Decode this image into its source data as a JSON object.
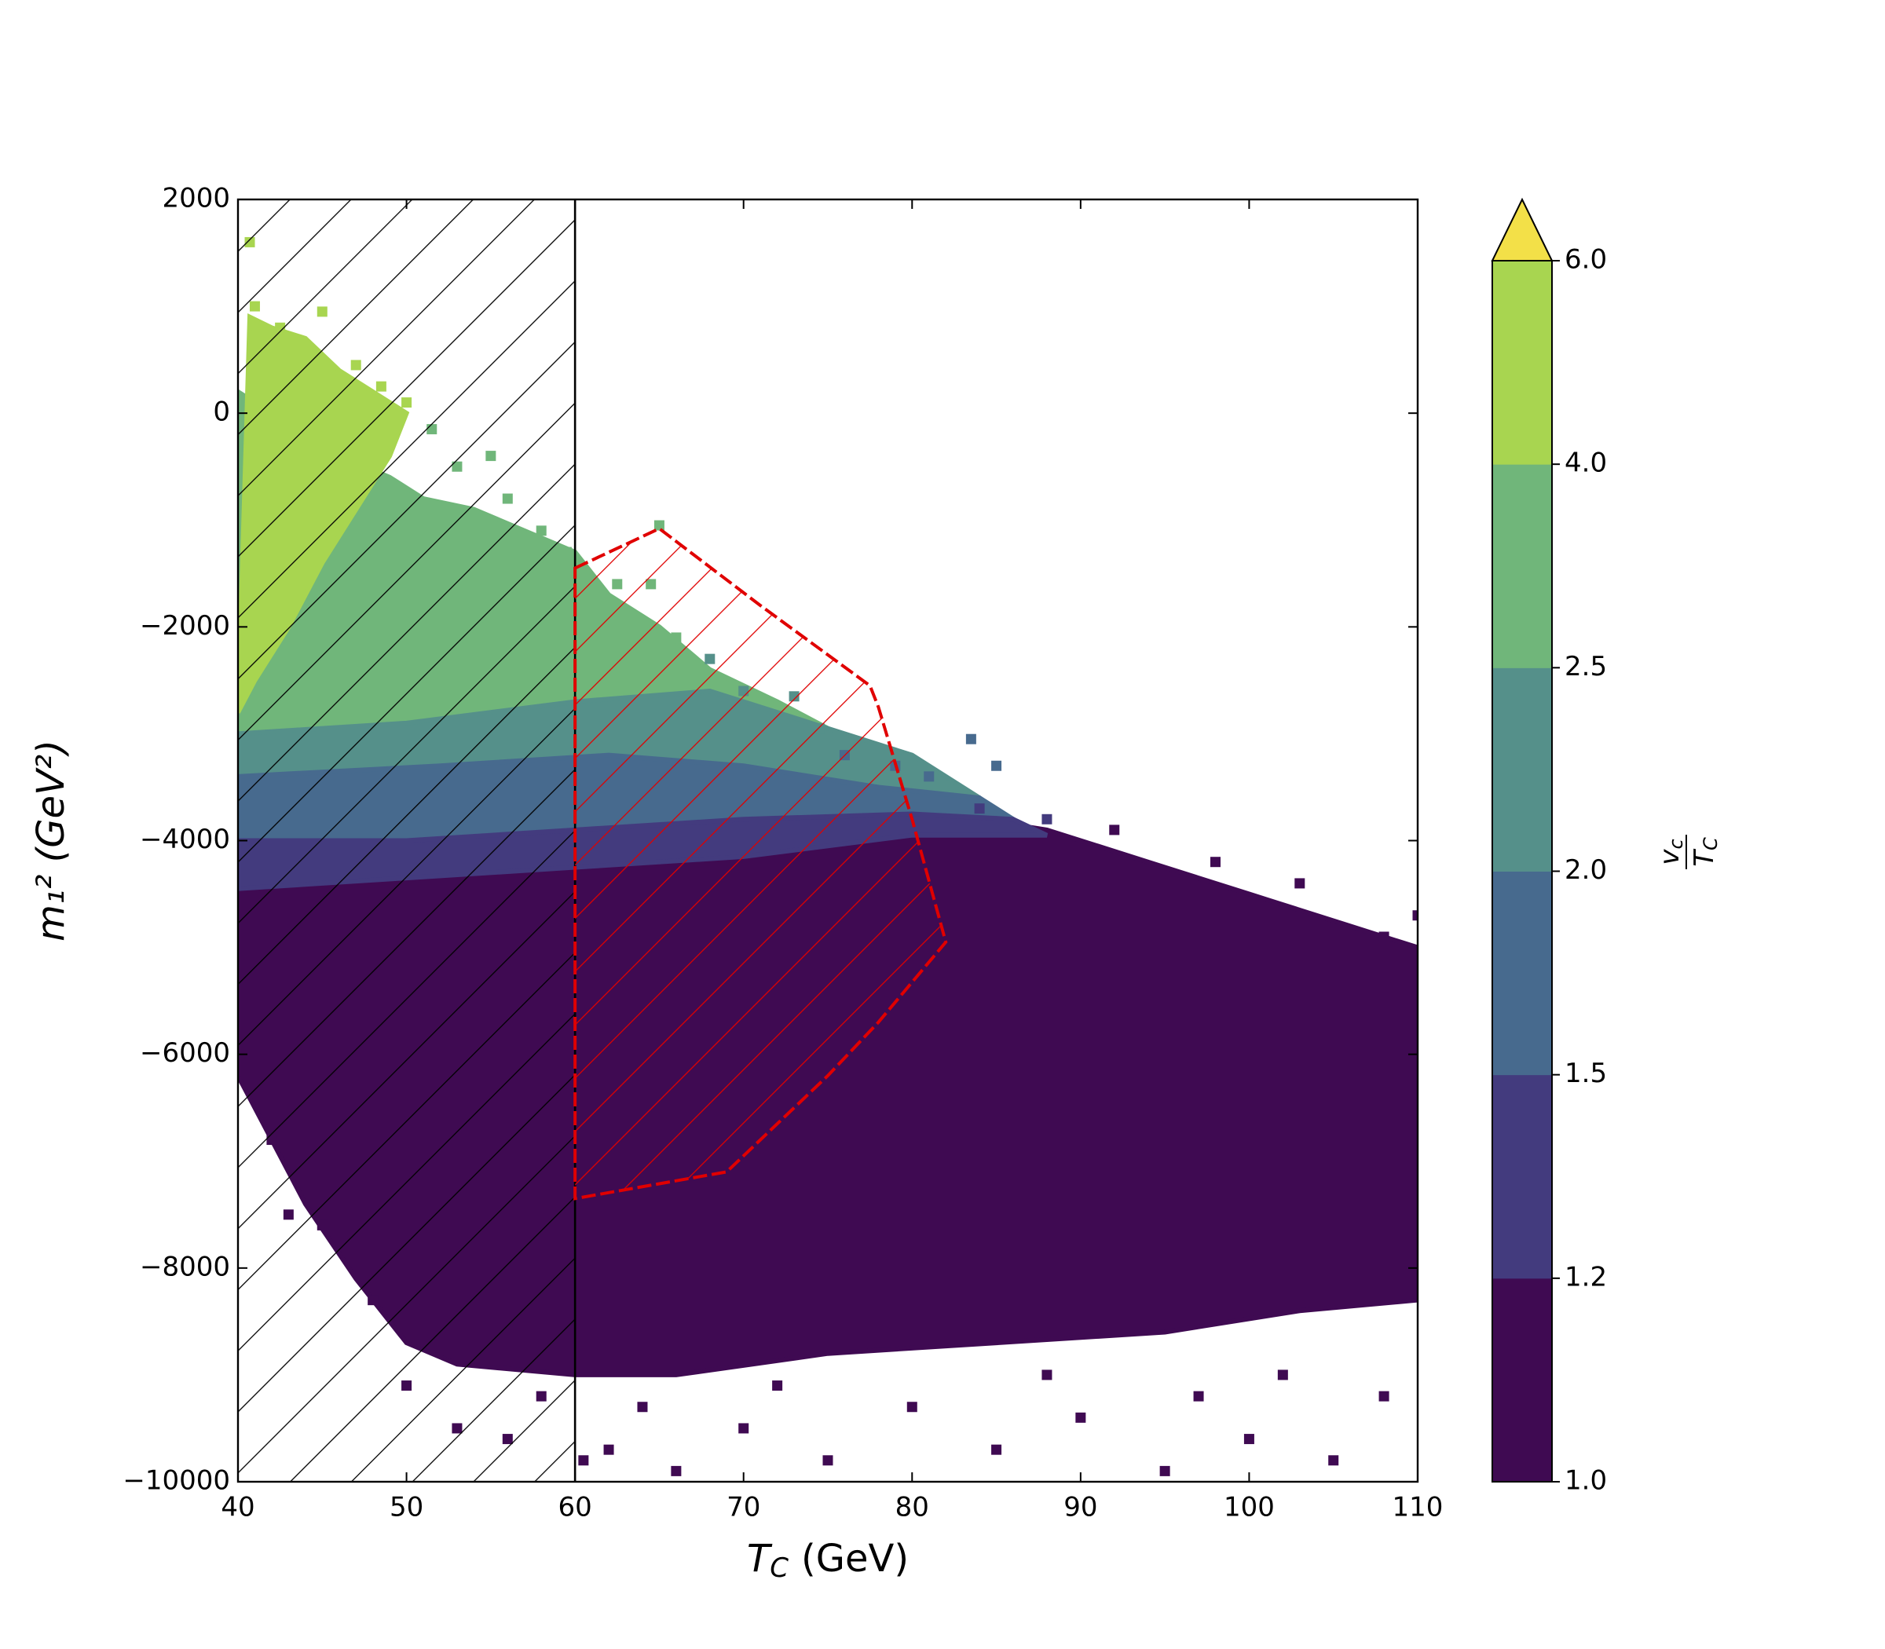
{
  "chart_data": {
    "type": "scatter",
    "xlabel": {
      "symbol": "T",
      "sub": "C",
      "unit": "(GeV)"
    },
    "ylabel": "m₁² (GeV²)",
    "xlim": [
      40,
      110
    ],
    "xticks": [
      40,
      50,
      60,
      70,
      80,
      90,
      100,
      110
    ],
    "ylim": [
      -10000,
      2000
    ],
    "yticks": [
      {
        "value": -10000,
        "label": "−10000"
      },
      {
        "value": -8000,
        "label": "−8000"
      },
      {
        "value": -6000,
        "label": "−6000"
      },
      {
        "value": -4000,
        "label": "−4000"
      },
      {
        "value": -2000,
        "label": "−2000"
      },
      0,
      2000
    ],
    "colorbar_label": {
      "numerator": "v",
      "numerator_sub": "c",
      "denominator": "T",
      "denominator_sub": "C"
    },
    "colorbar_ticks": [
      {
        "value": 1.0,
        "label": "1.0"
      },
      {
        "value": 1.2,
        "label": "1.2"
      },
      {
        "value": 1.5,
        "label": "1.5"
      },
      {
        "value": 2.0,
        "label": "2.0"
      },
      {
        "value": 2.5,
        "label": "2.5"
      },
      {
        "value": 4.0,
        "label": "4.0"
      },
      {
        "value": 6.0,
        "label": "6.0"
      }
    ],
    "colorbar_colors": [
      "#3f0a52",
      "#433b7e",
      "#476a8e",
      "#55908a",
      "#70b67a",
      "#a8d550"
    ],
    "colorbar_extend_color": "#f3e048",
    "excluded_xlim": [
      40,
      60
    ],
    "excluded_color": "#000000",
    "red_region": {
      "color": "#e00000",
      "x": [
        60,
        65,
        71,
        77.5,
        78,
        80,
        82,
        78,
        75,
        69,
        60
      ],
      "y": [
        -1450,
        -1080,
        -1800,
        -2550,
        -2750,
        -3800,
        -4950,
        -5700,
        -6200,
        -7100,
        -7350
      ]
    },
    "regions": [
      {
        "c": 1.1,
        "x": [
          40,
          42,
          44,
          47,
          50,
          53,
          60,
          66,
          75,
          85,
          95,
          103,
          110,
          110,
          106,
          100,
          94,
          88,
          84,
          78,
          70,
          60,
          50,
          40
        ],
        "y": [
          -6200,
          -6800,
          -7400,
          -8100,
          -8700,
          -8900,
          -9000,
          -9000,
          -8800,
          -8700,
          -8600,
          -8400,
          -8300,
          -5000,
          -4800,
          -4500,
          -4200,
          -3900,
          -3800,
          -3900,
          -4100,
          -4200,
          -4300,
          -4400
        ]
      },
      {
        "c": 3.0,
        "x": [
          40,
          40,
          43,
          46,
          49,
          51,
          54,
          57,
          60,
          62,
          65,
          68,
          72,
          78,
          82,
          60,
          40
        ],
        "y": [
          -4000,
          200,
          -100,
          -400,
          -600,
          -800,
          -900,
          -1100,
          -1300,
          -1700,
          -2000,
          -2400,
          -2700,
          -3200,
          -3600,
          -4000,
          -4100
        ]
      },
      {
        "c": 2.2,
        "x": [
          40,
          50,
          60,
          68,
          74,
          80,
          84,
          78,
          70,
          62,
          52,
          40
        ],
        "y": [
          -3000,
          -2900,
          -2700,
          -2600,
          -2900,
          -3200,
          -3600,
          -3500,
          -3300,
          -3200,
          -3300,
          -3400
        ]
      },
      {
        "c": 1.7,
        "x": [
          40,
          52,
          62,
          70,
          78,
          84,
          86,
          80,
          70,
          60,
          50,
          40
        ],
        "y": [
          -3400,
          -3300,
          -3200,
          -3300,
          -3500,
          -3600,
          -3800,
          -3750,
          -3800,
          -3900,
          -4000,
          -4000
        ]
      },
      {
        "c": 1.3,
        "x": [
          40,
          50,
          60,
          70,
          80,
          86,
          88,
          80,
          70,
          60,
          50,
          40
        ],
        "y": [
          -4000,
          -4000,
          -3900,
          -3800,
          -3750,
          -3800,
          -3950,
          -3950,
          -4150,
          -4250,
          -4350,
          -4450
        ]
      },
      {
        "c": 5.0,
        "x": [
          40,
          40.7,
          42,
          44,
          46,
          48,
          50,
          49,
          47,
          45,
          43,
          41,
          40
        ],
        "y": [
          -2800,
          900,
          800,
          700,
          400,
          200,
          0,
          -400,
          -900,
          -1400,
          -2000,
          -2500,
          -2800
        ]
      }
    ],
    "points": {
      "x": [
        40.7,
        41,
        42.5,
        45,
        47,
        48.5,
        50,
        51.5,
        53,
        55,
        56,
        58,
        59.5,
        65,
        62.5,
        64.5,
        66,
        68,
        70,
        73,
        74.5,
        76,
        79,
        81,
        83.5,
        85,
        84,
        88,
        92,
        98,
        103,
        108,
        110,
        42,
        43,
        45,
        48,
        50,
        53,
        56,
        62,
        66,
        70,
        75,
        80,
        85,
        90,
        95,
        100,
        105,
        108,
        102,
        88,
        72,
        64,
        58,
        60.5,
        97
      ],
      "y": [
        1600,
        1000,
        800,
        950,
        450,
        250,
        100,
        -150,
        -500,
        -400,
        -800,
        -1100,
        -1300,
        -1050,
        -1600,
        -1600,
        -2100,
        -2300,
        -2600,
        -2650,
        -2950,
        -3200,
        -3300,
        -3400,
        -3050,
        -3300,
        -3700,
        -3800,
        -3900,
        -4200,
        -4400,
        -4900,
        -4700,
        -6800,
        -7500,
        -7600,
        -8300,
        -9100,
        -9500,
        -9600,
        -9700,
        -9900,
        -9500,
        -9800,
        -9300,
        -9700,
        -9400,
        -9900,
        -9600,
        -9800,
        -9200,
        -9000,
        -9000,
        -9100,
        -9300,
        -9200,
        -9800,
        -9200
      ],
      "c": [
        5,
        5,
        5,
        5,
        5,
        5,
        5,
        3,
        3,
        3,
        3,
        3,
        3,
        3,
        3,
        3,
        3,
        2.2,
        2.2,
        2.2,
        2.2,
        1.7,
        1.7,
        1.7,
        1.7,
        1.7,
        1.3,
        1.3,
        1.1,
        1.1,
        1.1,
        1.1,
        1.1,
        1.1,
        1.1,
        1.1,
        1.1,
        1.1,
        1.1,
        1.1,
        1.1,
        1.1,
        1.1,
        1.1,
        1.1,
        1.1,
        1.1,
        1.1,
        1.1,
        1.1,
        1.1,
        1.1,
        1.1,
        1.1,
        1.1,
        1.1,
        1.1,
        1.1
      ]
    }
  }
}
